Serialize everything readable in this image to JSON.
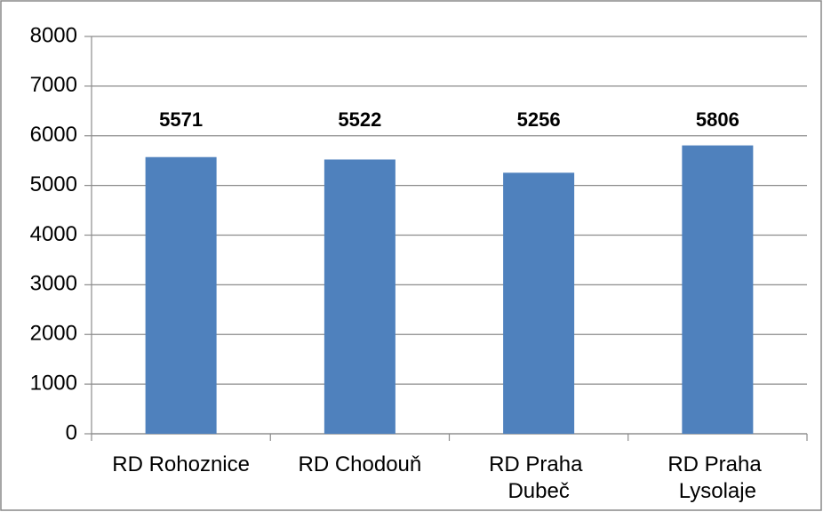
{
  "chart_data": {
    "type": "bar",
    "categories": [
      "RD Rohoznice",
      "RD Chodouň",
      "RD Praha Dubeč",
      "RD Praha Lysolaje"
    ],
    "values": [
      5571,
      5522,
      5256,
      5806
    ],
    "color": "#4f81bd",
    "ylim": [
      0,
      8000
    ],
    "yticks": [
      0,
      1000,
      2000,
      3000,
      4000,
      5000,
      6000,
      7000,
      8000
    ],
    "grid": true
  }
}
